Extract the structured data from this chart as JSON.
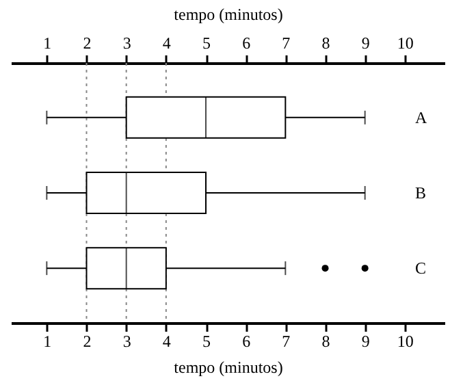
{
  "chart_data": {
    "type": "box",
    "orientation": "horizontal",
    "xlabel": "tempo (minutos)",
    "x2label": "tempo (minutos)",
    "categories": [
      "A",
      "B",
      "C"
    ],
    "xlim": [
      0.1,
      11
    ],
    "xticks": [
      1,
      2,
      3,
      4,
      5,
      6,
      7,
      8,
      9,
      10
    ],
    "x2lim": [
      0.1,
      11
    ],
    "x2ticks": [
      1,
      2,
      3,
      4,
      5,
      6,
      7,
      8,
      9,
      10
    ],
    "boxes": [
      {
        "low": 1,
        "q1": 3,
        "median": 5,
        "q3": 7,
        "high": 9
      },
      {
        "low": 1,
        "q1": 2,
        "median": 3,
        "q3": 5,
        "high": 9
      },
      {
        "low": 1,
        "q1": 2,
        "median": 3,
        "q3": 4,
        "high": 7,
        "outliers": [
          8,
          9
        ]
      }
    ],
    "ref_lines": [
      {
        "axis": "x",
        "value": 2,
        "line_style": "dotted"
      },
      {
        "axis": "x",
        "value": 3,
        "line_style": "dotted"
      },
      {
        "axis": "x",
        "value": 4,
        "line_style": "dotted"
      }
    ]
  }
}
